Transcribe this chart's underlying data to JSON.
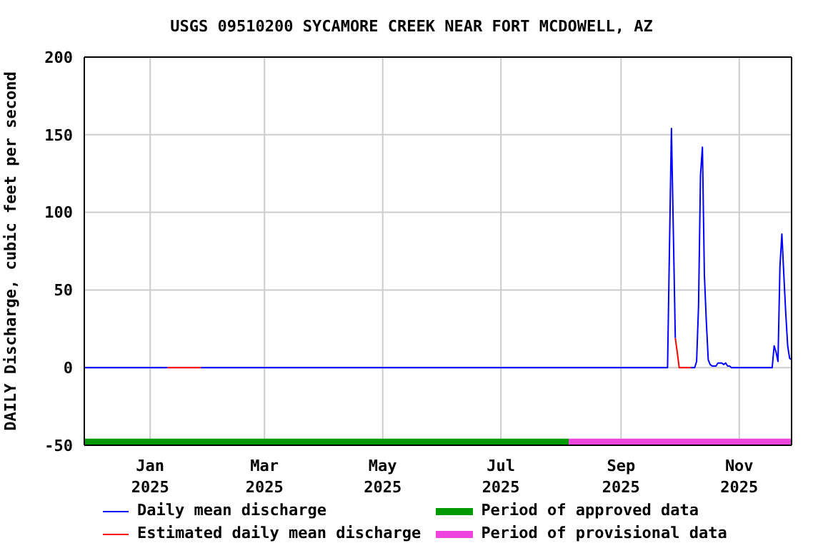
{
  "chart_data": {
    "type": "line",
    "title": "USGS 09510200 SYCAMORE CREEK NEAR FORT MCDOWELL, AZ",
    "ylabel": "DAILY Discharge, cubic feet per second",
    "series": [
      {
        "name": "Daily mean discharge",
        "color": "#0000ff",
        "x": [
          "2024-11-28",
          "2025-01-10",
          "2025-01-11",
          "2025-01-27",
          "2025-09-25",
          "2025-09-26",
          "2025-09-27",
          "2025-09-28",
          "2025-09-29",
          "2025-09-30",
          "2025-10-07",
          "2025-10-09",
          "2025-10-10",
          "2025-10-11",
          "2025-10-12",
          "2025-10-13",
          "2025-10-14",
          "2025-10-15",
          "2025-10-16",
          "2025-10-17",
          "2025-10-18",
          "2025-10-19",
          "2025-10-20",
          "2025-10-21",
          "2025-10-22",
          "2025-10-23",
          "2025-10-24",
          "2025-10-25",
          "2025-10-26",
          "2025-10-27",
          "2025-10-28",
          "2025-11-18",
          "2025-11-19",
          "2025-11-20",
          "2025-11-21",
          "2025-11-22",
          "2025-11-23",
          "2025-11-24",
          "2025-11-25",
          "2025-11-26",
          "2025-11-27",
          "2025-11-28"
        ],
        "values": [
          0,
          0,
          null,
          0,
          0,
          78,
          154,
          87,
          19,
          null,
          0,
          0,
          4,
          40,
          124,
          142,
          60,
          30,
          5,
          2,
          1,
          1,
          1,
          3,
          3,
          3,
          2,
          3,
          1,
          1,
          0,
          0,
          14,
          10,
          4,
          65,
          86,
          60,
          35,
          14,
          6,
          5
        ]
      },
      {
        "name": "Estimated daily mean discharge",
        "color": "#ff0000",
        "x": [
          "2025-01-10",
          "2025-01-27",
          "2025-01-28",
          "2025-09-29",
          "2025-09-30",
          "2025-10-01",
          "2025-10-07"
        ],
        "values": [
          0,
          0,
          null,
          19,
          10,
          0,
          0
        ]
      },
      {
        "name": "Period of approved data",
        "color": "#009900",
        "x": [
          "2024-11-28",
          "2025-08-05"
        ],
        "values": [
          -48,
          -48
        ]
      },
      {
        "name": "Period of provisional data",
        "color": "#ee44dd",
        "x": [
          "2025-08-05",
          "2025-11-28"
        ],
        "values": [
          -48,
          -48
        ]
      }
    ],
    "xlim": [
      "2024-11-28",
      "2025-11-28"
    ],
    "xticks": [
      {
        "value": "2025-01-01",
        "label": "Jan 2025"
      },
      {
        "value": "2025-03-01",
        "label": "Mar 2025"
      },
      {
        "value": "2025-05-01",
        "label": "May 2025"
      },
      {
        "value": "2025-07-01",
        "label": "Jul 2025"
      },
      {
        "value": "2025-09-01",
        "label": "Sep 2025"
      },
      {
        "value": "2025-11-01",
        "label": "Nov 2025"
      }
    ],
    "ylim": [
      -50,
      200
    ],
    "yticks": [
      -50,
      0,
      50,
      100,
      150,
      200
    ],
    "grid": true,
    "legend": "bottom",
    "marker": "none",
    "line_style": "solid"
  }
}
